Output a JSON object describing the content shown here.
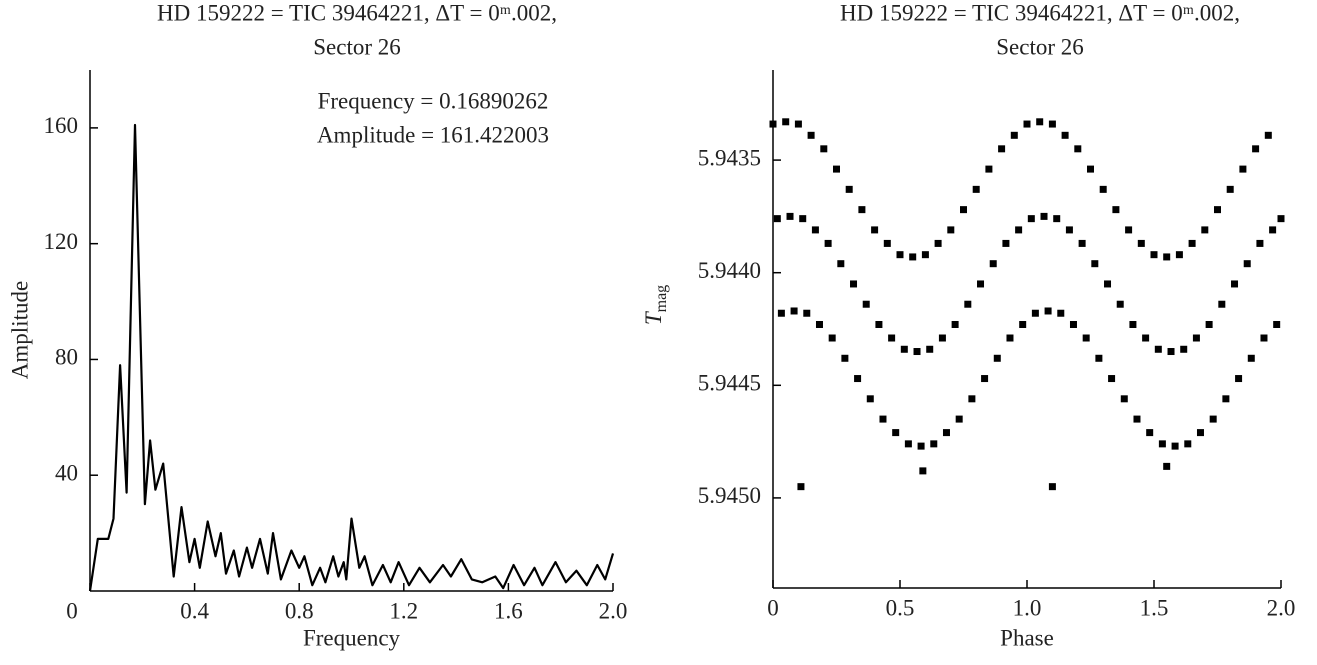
{
  "chart_data": [
    {
      "type": "line",
      "title": [
        "HD 159222 = TIC 39464221, ΔT = 0ᵐ.002,",
        "Sector 26"
      ],
      "xlabel": "Frequency",
      "ylabel": "Amplitude",
      "annotations": [
        "Frequency = 0.16890262",
        "Amplitude = 161.422003"
      ],
      "color": "#000000",
      "xlim": [
        0,
        2
      ],
      "ylim": [
        0,
        180
      ],
      "xticks": [
        0,
        0.4,
        0.8,
        1.2,
        1.6,
        {
          "value": 2,
          "label": "2.0"
        }
      ],
      "yticks": [
        40,
        80,
        120,
        160
      ],
      "x": [
        0,
        0.03,
        0.07,
        0.09,
        0.115,
        0.14,
        0.172,
        0.21,
        0.23,
        0.25,
        0.28,
        0.32,
        0.35,
        0.38,
        0.4,
        0.42,
        0.45,
        0.48,
        0.5,
        0.52,
        0.55,
        0.57,
        0.6,
        0.62,
        0.65,
        0.68,
        0.7,
        0.73,
        0.77,
        0.8,
        0.82,
        0.85,
        0.88,
        0.9,
        0.93,
        0.95,
        0.97,
        0.98,
        1.0,
        1.03,
        1.05,
        1.08,
        1.12,
        1.15,
        1.18,
        1.22,
        1.26,
        1.3,
        1.35,
        1.38,
        1.42,
        1.46,
        1.5,
        1.55,
        1.58,
        1.62,
        1.66,
        1.7,
        1.73,
        1.78,
        1.82,
        1.86,
        1.9,
        1.94,
        1.97,
        2.0
      ],
      "values": [
        0,
        18,
        18,
        25,
        78,
        34,
        161,
        30,
        52,
        35,
        44,
        5,
        29,
        10,
        18,
        8,
        24,
        12,
        20,
        6,
        14,
        5,
        15,
        8,
        18,
        6,
        20,
        4,
        14,
        8,
        12,
        2,
        8,
        3,
        12,
        5,
        10,
        4,
        25,
        8,
        12,
        2,
        9,
        3,
        10,
        2,
        8,
        3,
        9,
        5,
        11,
        4,
        3,
        5,
        1,
        9,
        2,
        8,
        2,
        10,
        3,
        7,
        2,
        9,
        4,
        13
      ]
    },
    {
      "type": "scatter",
      "title": [
        "HD 159222 = TIC 39464221, ΔT = 0ᵐ.002,",
        "Sector 26"
      ],
      "xlabel": "Phase",
      "ylabel": "T",
      "ylabel_sub": "mag",
      "color": "#000000",
      "inverted_y": true,
      "xlim": [
        0,
        2
      ],
      "ylim": [
        5.9431,
        5.9454
      ],
      "xticks": [
        0,
        0.5,
        {
          "value": 1,
          "label": "1.0"
        },
        1.5,
        {
          "value": 2,
          "label": "2.0"
        }
      ],
      "yticks": [
        5.9435,
        {
          "value": 5.944,
          "label": "5.9440"
        },
        5.9445,
        {
          "value": 5.945,
          "label": "5.9450"
        }
      ],
      "x": [
        0,
        0.017,
        0.033,
        0.05,
        0.067,
        0.083,
        0.1,
        0.117,
        0.133,
        0.15,
        0.167,
        0.183,
        0.2,
        0.217,
        0.233,
        0.25,
        0.267,
        0.283,
        0.3,
        0.317,
        0.333,
        0.35,
        0.367,
        0.383,
        0.4,
        0.417,
        0.433,
        0.45,
        0.467,
        0.483,
        0.5,
        0.517,
        0.533,
        0.55,
        0.567,
        0.583,
        0.6,
        0.617,
        0.633,
        0.65,
        0.667,
        0.683,
        0.7,
        0.717,
        0.733,
        0.75,
        0.767,
        0.783,
        0.8,
        0.817,
        0.833,
        0.85,
        0.867,
        0.883,
        0.9,
        0.917,
        0.933,
        0.95,
        0.967,
        0.983,
        1,
        1.017,
        1.033,
        1.05,
        1.067,
        1.083,
        1.1,
        1.117,
        1.133,
        1.15,
        1.167,
        1.183,
        1.2,
        1.217,
        1.233,
        1.25,
        1.267,
        1.283,
        1.3,
        1.317,
        1.333,
        1.35,
        1.367,
        1.383,
        1.4,
        1.417,
        1.433,
        1.45,
        1.467,
        1.483,
        1.5,
        1.517,
        1.533,
        1.55,
        1.567,
        1.583,
        1.6,
        1.617,
        1.633,
        1.65,
        1.667,
        1.683,
        1.7,
        1.717,
        1.733,
        1.75,
        1.767,
        1.783,
        1.8,
        1.817,
        1.833,
        1.85,
        1.867,
        1.883,
        1.9,
        1.917,
        1.933,
        1.95,
        1.967,
        1.983,
        2.0,
        0.11,
        0.59,
        1.1,
        1.55
      ],
      "values": [
        5.94334,
        5.94376,
        5.94418,
        5.94333,
        5.94375,
        5.94417,
        5.94334,
        5.94376,
        5.94418,
        5.94339,
        5.94381,
        5.94423,
        5.94345,
        5.94387,
        5.94429,
        5.94354,
        5.94396,
        5.94438,
        5.94363,
        5.94405,
        5.94447,
        5.94372,
        5.94414,
        5.94456,
        5.94381,
        5.94423,
        5.94465,
        5.94387,
        5.94429,
        5.94471,
        5.94392,
        5.94434,
        5.94476,
        5.94393,
        5.94435,
        5.94477,
        5.94392,
        5.94434,
        5.94476,
        5.94387,
        5.94429,
        5.94471,
        5.94381,
        5.94423,
        5.94465,
        5.94372,
        5.94414,
        5.94456,
        5.94363,
        5.94405,
        5.94447,
        5.94354,
        5.94396,
        5.94438,
        5.94345,
        5.94387,
        5.94429,
        5.94339,
        5.94381,
        5.94423,
        5.94334,
        5.94376,
        5.94418,
        5.94333,
        5.94375,
        5.94417,
        5.94334,
        5.94376,
        5.94418,
        5.94339,
        5.94381,
        5.94423,
        5.94345,
        5.94387,
        5.94429,
        5.94354,
        5.94396,
        5.94438,
        5.94363,
        5.94405,
        5.94447,
        5.94372,
        5.94414,
        5.94456,
        5.94381,
        5.94423,
        5.94465,
        5.94387,
        5.94429,
        5.94471,
        5.94392,
        5.94434,
        5.94476,
        5.94393,
        5.94435,
        5.94477,
        5.94392,
        5.94434,
        5.94476,
        5.94387,
        5.94429,
        5.94471,
        5.94381,
        5.94423,
        5.94465,
        5.94372,
        5.94414,
        5.94456,
        5.94363,
        5.94405,
        5.94447,
        5.94354,
        5.94396,
        5.94438,
        5.94345,
        5.94387,
        5.94429,
        5.94339,
        5.94381,
        5.94423,
        5.94376,
        5.94495,
        5.94488,
        5.94495,
        5.94486
      ]
    }
  ]
}
